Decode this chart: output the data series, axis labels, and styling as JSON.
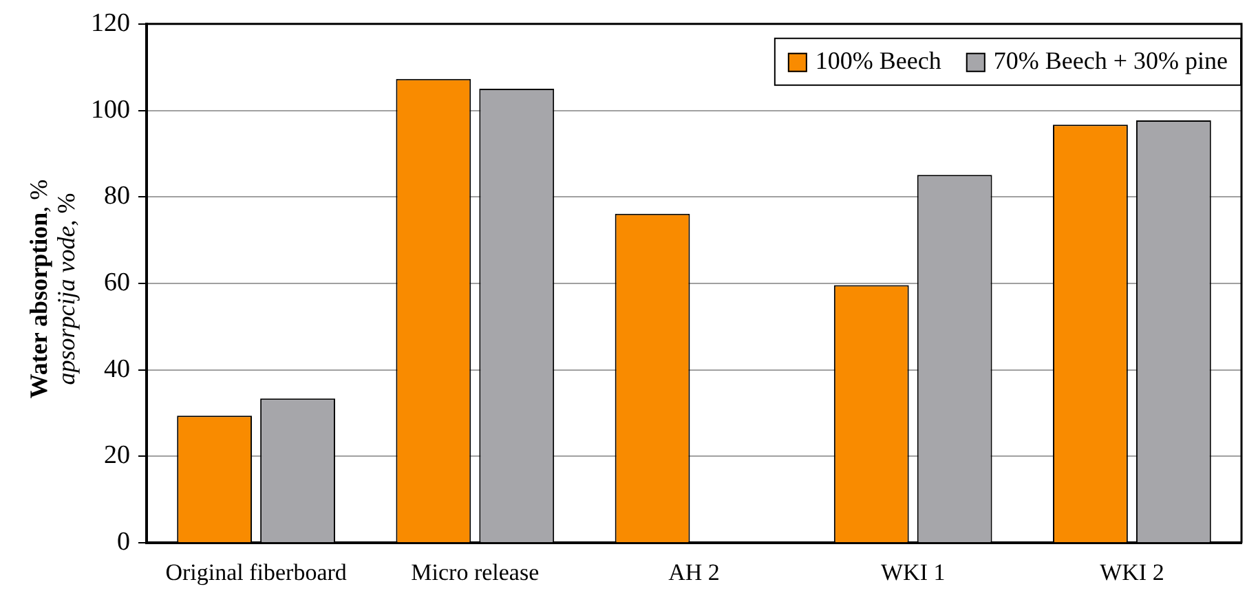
{
  "chart_data": {
    "type": "bar",
    "ylabel": "Water absorption, %\napsorpcija vode, %",
    "categories": [
      "Original fiberboard",
      "Micro release",
      "AH 2",
      "WKI 1",
      "WKI 2"
    ],
    "series": [
      {
        "name": "100% Beech",
        "color": "#f98b00",
        "values": [
          29.4,
          107.3,
          76.1,
          59.6,
          96.7
        ]
      },
      {
        "name": "70% Beech + 30% pine",
        "color": "#a6a6aa",
        "values": [
          33.4,
          105.0,
          null,
          85.1,
          97.7
        ]
      }
    ],
    "ylim": [
      0,
      120
    ],
    "yticks": [
      0,
      20,
      40,
      60,
      80,
      100,
      120
    ],
    "grid": "y",
    "legend": "top right"
  }
}
